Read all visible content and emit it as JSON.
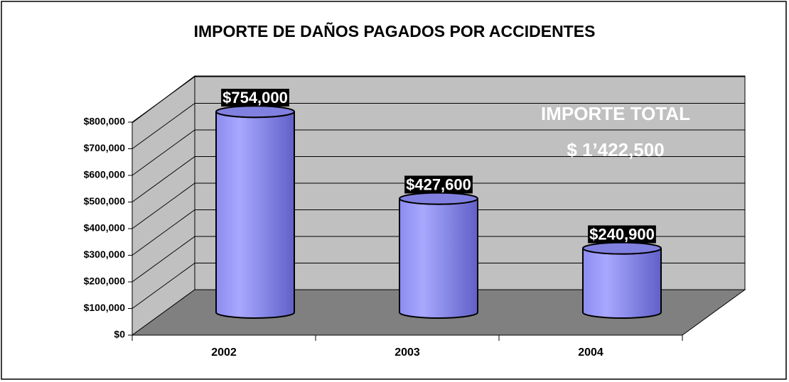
{
  "chart_data": {
    "type": "bar3d",
    "title": "IMPORTE DE DAÑOS PAGADOS POR ACCIDENTES",
    "categories": [
      "2002",
      "2003",
      "2004"
    ],
    "values": [
      754000,
      427600,
      240900
    ],
    "value_labels": [
      "$754,000",
      "$427,600",
      "$240,900"
    ],
    "color": "#9a9af5",
    "ylim": [
      0,
      800000
    ],
    "yticks": [
      {
        "value": 0,
        "label": "$0"
      },
      {
        "value": 100000,
        "label": "$100,000"
      },
      {
        "value": 200000,
        "label": "$200,000"
      },
      {
        "value": 300000,
        "label": "$300,000"
      },
      {
        "value": 400000,
        "label": "$400,000"
      },
      {
        "value": 500000,
        "label": "$500,000"
      },
      {
        "value": 600000,
        "label": "$600,000"
      },
      {
        "value": 700000,
        "label": "$700,000"
      },
      {
        "value": 800000,
        "label": "$800,000"
      }
    ],
    "grid": true,
    "annotations": [
      "IMPORTE TOTAL",
      "$ 1’422,500"
    ]
  }
}
